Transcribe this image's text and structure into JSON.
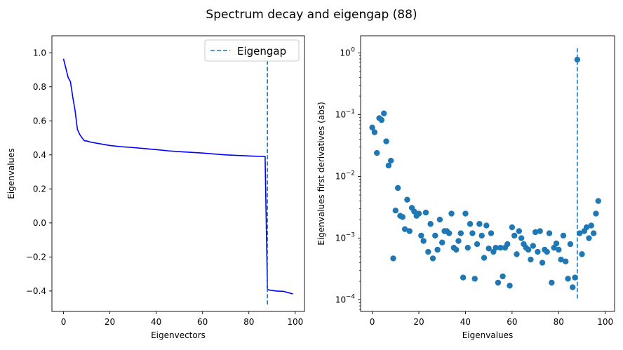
{
  "figure": {
    "suptitle": "Spectrum decay and eigengap (88)"
  },
  "chart_data": [
    {
      "type": "line",
      "xlabel": "Eigenvectors",
      "ylabel": "Eigenvalues",
      "xlim": [
        -5,
        104
      ],
      "ylim": [
        -0.52,
        1.1
      ],
      "xticks": [
        0,
        20,
        40,
        60,
        80,
        100
      ],
      "xtick_labels": [
        "0",
        "20",
        "40",
        "60",
        "80",
        "100"
      ],
      "yticks": [
        -0.4,
        -0.2,
        0.0,
        0.2,
        0.4,
        0.6,
        0.8,
        1.0
      ],
      "ytick_labels": [
        "−0.4",
        "−0.2",
        "0.0",
        "0.2",
        "0.4",
        "0.6",
        "0.8",
        "1.0"
      ],
      "grid": false,
      "legend": {
        "location": "top-right",
        "entries": [
          "Eigengap"
        ]
      },
      "series": [
        {
          "color": "#0000ff",
          "style": "solid",
          "x": [
            0,
            1,
            2,
            3,
            4,
            5,
            6,
            7,
            8,
            9,
            10,
            12,
            15,
            20,
            25,
            30,
            35,
            40,
            45,
            50,
            55,
            60,
            65,
            70,
            75,
            80,
            85,
            87,
            88,
            89,
            92,
            95,
            97,
            99
          ],
          "y": [
            0.965,
            0.91,
            0.855,
            0.83,
            0.74,
            0.66,
            0.55,
            0.52,
            0.5,
            0.483,
            0.482,
            0.474,
            0.467,
            0.455,
            0.448,
            0.443,
            0.437,
            0.431,
            0.424,
            0.419,
            0.415,
            0.411,
            0.405,
            0.4,
            0.397,
            0.394,
            0.391,
            0.39,
            -0.39,
            -0.395,
            -0.4,
            -0.402,
            -0.41,
            -0.417
          ]
        },
        {
          "name": "Eigengap",
          "color": "#1f77b4",
          "style": "dashed",
          "x": [
            88,
            88
          ],
          "y": [
            -0.48,
            0.965
          ]
        }
      ]
    },
    {
      "type": "scatter",
      "xlabel": "Eigenvalues",
      "ylabel": "Eigenvalues first derivatives (abs)",
      "xlim": [
        -5,
        104
      ],
      "ylim": [
        6.5e-05,
        1.9
      ],
      "yscale": "log",
      "xticks": [
        0,
        20,
        40,
        60,
        80,
        100
      ],
      "xtick_labels": [
        "0",
        "20",
        "40",
        "60",
        "80",
        "100"
      ],
      "yticks": [
        0.0001,
        0.001,
        0.01,
        0.1,
        1
      ],
      "ytick_labels": [
        "10",
        "10",
        "10",
        "10",
        "10"
      ],
      "ytick_exponents": [
        "−4",
        "−3",
        "−2",
        "−1",
        "0"
      ],
      "grid": false,
      "series": [
        {
          "color": "#1f77b4",
          "x": [
            0,
            1,
            2,
            3,
            4,
            5,
            6,
            7,
            8,
            9,
            10,
            11,
            12,
            13,
            14,
            15,
            16,
            17,
            18,
            19,
            20,
            21,
            22,
            23,
            24,
            25,
            26,
            27,
            28,
            29,
            30,
            31,
            32,
            33,
            34,
            35,
            36,
            37,
            38,
            39,
            40,
            41,
            42,
            43,
            44,
            45,
            46,
            47,
            48,
            49,
            50,
            51,
            52,
            53,
            54,
            55,
            56,
            57,
            58,
            59,
            60,
            61,
            62,
            63,
            64,
            65,
            66,
            67,
            68,
            69,
            70,
            71,
            72,
            73,
            74,
            75,
            76,
            77,
            78,
            79,
            80,
            81,
            82,
            83,
            84,
            85,
            86,
            87,
            88,
            89,
            90,
            91,
            92,
            93,
            94,
            95,
            96,
            97
          ],
          "y": [
            0.062,
            0.052,
            0.024,
            0.088,
            0.082,
            0.105,
            0.037,
            0.015,
            0.018,
            0.00047,
            0.0028,
            0.0065,
            0.0023,
            0.0022,
            0.0014,
            0.0042,
            0.0013,
            0.0031,
            0.0027,
            0.0023,
            0.0025,
            0.0011,
            0.0009,
            0.0026,
            0.0006,
            0.0017,
            0.00047,
            0.0011,
            0.00065,
            0.002,
            0.00085,
            0.0013,
            0.0013,
            0.0012,
            0.0025,
            0.0007,
            0.00065,
            0.0009,
            0.0012,
            0.00023,
            0.0025,
            0.0007,
            0.0017,
            0.0012,
            0.00022,
            0.0008,
            0.0017,
            0.0011,
            0.00048,
            0.0016,
            0.00068,
            0.0012,
            0.0006,
            0.0007,
            0.00019,
            0.0007,
            0.00024,
            0.0007,
            0.0008,
            0.00017,
            0.0015,
            0.0011,
            0.00055,
            0.0013,
            0.001,
            0.0008,
            0.0007,
            0.00065,
            0.00045,
            0.00075,
            0.00125,
            0.0006,
            0.0013,
            0.0004,
            0.00065,
            0.0006,
            0.0012,
            0.00019,
            0.0007,
            0.00082,
            0.00065,
            0.00045,
            0.0011,
            0.00042,
            0.00022,
            0.0008,
            0.00016,
            0.00023,
            0.78,
            0.0012,
            0.00055,
            0.0013,
            0.0015,
            0.001,
            0.0016,
            0.0012,
            0.0025,
            0.004
          ]
        },
        {
          "color": "#1f77b4",
          "style": "dashed",
          "x": [
            88,
            88
          ],
          "y": [
            0.000105,
            1.2
          ]
        }
      ]
    }
  ]
}
